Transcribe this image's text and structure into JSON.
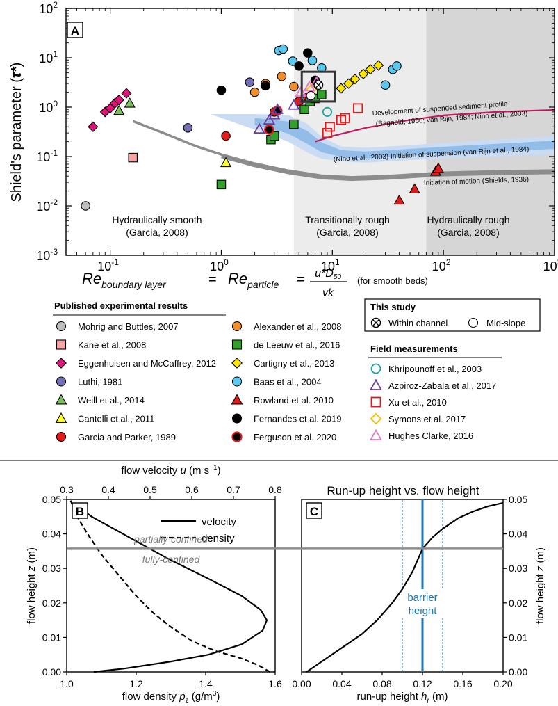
{
  "colors": {
    "band_light": "#ececec",
    "band_dark": "#d6d6d6",
    "suspension_light": "#c9dcf3",
    "suspension_dark": "#8ab7e6",
    "motion_curve": "#8c8c8c",
    "profile_curve": "#c2185b",
    "barrier": "#1f77b4",
    "confinement_line": "#8c8c8c"
  },
  "chart_data": [
    {
      "type": "scatter",
      "panel": "A",
      "panel_label": "A",
      "xscale": "log",
      "yscale": "log",
      "xlim": [
        0.04,
        1000
      ],
      "ylim": [
        0.001,
        100
      ],
      "x_ticks": [
        {
          "v": 0.1,
          "label": "10",
          "exp": "-1"
        },
        {
          "v": 1,
          "label": "10",
          "exp": "0"
        },
        {
          "v": 10,
          "label": "10",
          "exp": "1"
        },
        {
          "v": 100,
          "label": "10",
          "exp": "2"
        },
        {
          "v": 1000,
          "label": "10",
          "exp": "3"
        }
      ],
      "y_ticks": [
        {
          "v": 0.001,
          "label": "10",
          "exp": "-3"
        },
        {
          "v": 0.01,
          "label": "10",
          "exp": "-2"
        },
        {
          "v": 0.1,
          "label": "10",
          "exp": "-1"
        },
        {
          "v": 1,
          "label": "10",
          "exp": "0"
        },
        {
          "v": 10,
          "label": "10",
          "exp": "1"
        },
        {
          "v": 100,
          "label": "10",
          "exp": "2"
        }
      ],
      "ylabel": "Shield's parameter (",
      "ylabel_symbol": "τ*",
      "ylabel_close": ")",
      "xlabel": {
        "re_main": "Re",
        "boundary_sub": "boundary layer",
        "equals": "=",
        "particle_sub": "particle",
        "numerator": "u*D",
        "numerator_sub": "50",
        "denominator": "vk",
        "note": "(for smooth beds)"
      },
      "regions": [
        {
          "name": "Hydraulically smooth",
          "cite": "(Garcia, 2008)",
          "x_from": 0.04,
          "x_to": 4.5,
          "shade": "none"
        },
        {
          "name": "Transitionally rough",
          "cite": "(Garcia, 2008)",
          "x_from": 4.5,
          "x_to": 70,
          "shade": "light"
        },
        {
          "name": "Hydraulically rough",
          "cite": "(Garcia, 2008)",
          "x_from": 70,
          "x_to": 1000,
          "shade": "dark"
        }
      ],
      "curves": [
        {
          "name": "Initiation of motion (Shields, 1936)",
          "x": [
            0.16,
            0.3,
            0.6,
            1,
            2,
            4,
            8,
            15,
            30,
            60,
            100,
            300,
            1000
          ],
          "y": [
            0.52,
            0.3,
            0.16,
            0.11,
            0.072,
            0.052,
            0.041,
            0.038,
            0.04,
            0.044,
            0.047,
            0.05,
            0.052
          ]
        },
        {
          "name": "Development of suspended sediment profile",
          "cite": "(Bagnold, 1966; van Rijn, 1984; Nino et al., 2003)",
          "x": [
            7,
            10,
            20,
            50,
            100,
            300,
            1000
          ],
          "y": [
            0.2,
            0.26,
            0.38,
            0.55,
            0.68,
            0.8,
            0.88
          ]
        },
        {
          "name": "(Nino et al., 2003) Initiation of suspension (van Rijn et al., 1984)",
          "x": [
            0.8,
            2,
            4,
            6,
            8,
            12,
            20,
            50,
            100,
            300,
            1000
          ],
          "y_upper": [
            0.72,
            0.72,
            0.7,
            0.45,
            0.25,
            0.16,
            0.15,
            0.17,
            0.19,
            0.22,
            0.26
          ],
          "y_lower": [
            0.72,
            0.35,
            0.2,
            0.12,
            0.09,
            0.08,
            0.075,
            0.085,
            0.09,
            0.1,
            0.11
          ]
        }
      ],
      "series": [
        {
          "name": "Mohrig and Buttles, 2007",
          "marker": "circle",
          "fill": "#bdbdbd",
          "stroke": "#000000",
          "points": [
            [
              0.06,
              0.01
            ]
          ]
        },
        {
          "name": "Kane et al., 2008",
          "marker": "square",
          "fill": "#f4a6a6",
          "stroke": "#000000",
          "points": [
            [
              0.16,
              0.095
            ]
          ]
        },
        {
          "name": "Eggenhuisen and McCaffrey, 2012",
          "marker": "diamond",
          "fill": "#e0157a",
          "stroke": "#000000",
          "points": [
            [
              0.07,
              0.4
            ],
            [
              0.09,
              0.8
            ],
            [
              0.1,
              0.95
            ],
            [
              0.11,
              1.2
            ],
            [
              0.12,
              1.4
            ],
            [
              0.14,
              1.9
            ]
          ]
        },
        {
          "name": "Luthi, 1981",
          "marker": "circle",
          "fill": "#7570b3",
          "stroke": "#000000",
          "points": [
            [
              0.5,
              0.38
            ],
            [
              1.8,
              3.2
            ]
          ]
        },
        {
          "name": "Weill et al., 2014",
          "marker": "triangle",
          "fill": "#7fbf5f",
          "stroke": "#000000",
          "points": [
            [
              0.12,
              0.85
            ],
            [
              0.15,
              1.2
            ]
          ]
        },
        {
          "name": "Cantelli et al., 2011",
          "marker": "triangle",
          "fill": "#ffff33",
          "stroke": "#000000",
          "points": [
            [
              1.1,
              0.075
            ]
          ]
        },
        {
          "name": "Garcia and Parker, 1989",
          "marker": "circle",
          "fill": "#e31a1c",
          "stroke": "#000000",
          "points": [
            [
              1.1,
              0.26
            ],
            [
              3,
              0.8
            ],
            [
              5,
              1.3
            ],
            [
              6,
              1.6
            ]
          ]
        },
        {
          "name": "Alexander et al., 2008",
          "marker": "circle",
          "fill": "#f28e2b",
          "stroke": "#000000",
          "points": [
            [
              2,
              2.0
            ],
            [
              2.5,
              3.0
            ],
            [
              3.5,
              4.2
            ],
            [
              4.5,
              2.6
            ]
          ]
        },
        {
          "name": "de Leeuw et al., 2016",
          "marker": "square",
          "fill": "#33a02c",
          "stroke": "#000000",
          "points": [
            [
              1,
              0.027
            ],
            [
              2.8,
              0.22
            ],
            [
              3,
              0.26
            ],
            [
              4.5,
              0.45
            ],
            [
              5.6,
              0.9
            ],
            [
              6.3,
              1.3
            ],
            [
              7,
              1.5
            ],
            [
              8,
              1.8
            ]
          ]
        },
        {
          "name": "Cartigny et al., 2013",
          "marker": "diamond",
          "fill": "#ffe600",
          "stroke": "#000000",
          "points": [
            [
              12,
              2.4
            ],
            [
              14,
              3.0
            ],
            [
              16,
              3.7
            ],
            [
              19,
              4.7
            ],
            [
              22,
              5.8
            ],
            [
              26,
              7.0
            ]
          ]
        },
        {
          "name": "Baas et al., 2004",
          "marker": "circle",
          "fill": "#5bc8f0",
          "stroke": "#000000",
          "points": [
            [
              3.3,
              14
            ],
            [
              3.6,
              15
            ],
            [
              4.4,
              8.5
            ],
            [
              6.6,
              8.8
            ],
            [
              8,
              6.2
            ],
            [
              30,
              2.8
            ],
            [
              35,
              5.8
            ],
            [
              38,
              6.8
            ]
          ]
        },
        {
          "name": "Rowland et al. 2010",
          "marker": "triangle",
          "fill": "#e31a1c",
          "stroke": "#000000",
          "points": [
            [
              40,
              0.013
            ],
            [
              55,
              0.022
            ],
            [
              85,
              0.05
            ],
            [
              90,
              0.058
            ]
          ]
        },
        {
          "name": "Fernandes et al. 2019",
          "marker": "circle",
          "fill": "#000000",
          "stroke": "#000000",
          "points": [
            [
              1,
              2.2
            ],
            [
              2.5,
              2.7
            ],
            [
              5,
              6.8
            ],
            [
              6,
              12.5
            ],
            [
              7,
              3.5
            ]
          ]
        },
        {
          "name": "Ferguson et al. 2020",
          "marker": "circle",
          "fill": "#000000",
          "stroke": "#e31a1c",
          "points": [
            [
              2.7,
              0.35
            ],
            [
              3.2,
              0.85
            ]
          ]
        },
        {
          "name": "Khripounoff et al., 2003",
          "marker": "circle",
          "fill": "none",
          "stroke": "#1aa39b",
          "points": [
            [
              9,
              0.8
            ]
          ]
        },
        {
          "name": "Azpiroz-Zabala et al., 2017",
          "marker": "triangle",
          "fill": "none",
          "stroke": "#6a3d9a",
          "points": [
            [
              2.2,
              0.36
            ],
            [
              2.7,
              0.55
            ],
            [
              3,
              0.7
            ],
            [
              3.2,
              0.9
            ],
            [
              4.5,
              1.1
            ],
            [
              5.6,
              1.5
            ]
          ]
        },
        {
          "name": "Xu et al., 2010",
          "marker": "square",
          "fill": "none",
          "stroke": "#e31a1c",
          "points": [
            [
              9,
              0.3
            ],
            [
              9.5,
              0.4
            ],
            [
              12,
              0.55
            ],
            [
              13,
              0.6
            ],
            [
              17,
              0.95
            ]
          ]
        },
        {
          "name": "Symons et al. 2017",
          "marker": "diamond",
          "fill": "none",
          "stroke": "#f2c200",
          "points": [
            [
              6.5,
              2.3
            ]
          ]
        },
        {
          "name": "Hughes Clarke, 2016",
          "marker": "triangle",
          "fill": "none",
          "stroke": "#e377c2",
          "points": [
            [
              5.2,
              2.0
            ],
            [
              6.2,
              2.6
            ],
            [
              7.2,
              3.2
            ]
          ]
        },
        {
          "name": "Within channel",
          "marker": "otimes",
          "fill": "#ffffff",
          "stroke": "#000000",
          "points": [
            [
              7.5,
              2.8
            ]
          ]
        },
        {
          "name": "Mid-slope",
          "marker": "circle",
          "fill": "#ffffff",
          "stroke": "#000000",
          "points": [
            [
              6.4,
              1.7
            ]
          ]
        }
      ],
      "highlight_box": {
        "x": [
          5.3,
          10.5
        ],
        "y": [
          1.3,
          5.2
        ]
      }
    },
    {
      "type": "line",
      "panel": "B",
      "panel_label": "B",
      "ylabel": "flow height",
      "ylabel_var": "z",
      "ylabel_unit": "(m)",
      "ylim": [
        0,
        0.05
      ],
      "y_ticks": [
        0,
        0.01,
        0.02,
        0.03,
        0.04,
        0.05
      ],
      "y_tick_labels": [
        "0.00",
        "0.01",
        "0.02",
        "0.03",
        "0.04",
        "0.05"
      ],
      "xlabel_bottom": "flow density",
      "xlabel_bottom_var": "p",
      "xlabel_bottom_sub": "z",
      "xlabel_bottom_unit": "(g/m",
      "xlabel_bottom_unit_sup": "3",
      "xlabel_bottom_unit_close": ")",
      "xlim_bottom": [
        1.0,
        1.6
      ],
      "x_ticks_bottom": [
        1.0,
        1.2,
        1.4,
        1.6
      ],
      "x_tick_labels_bottom": [
        "1.0",
        "1.2",
        "1.4",
        "1.6"
      ],
      "xlabel_top": "flow velocity",
      "xlabel_top_var": "u",
      "xlabel_top_unit": "(m s",
      "xlabel_top_unit_sup": "−1",
      "xlabel_top_unit_close": ")",
      "xlim_top": [
        0.3,
        0.8
      ],
      "x_ticks_top": [
        0.3,
        0.4,
        0.5,
        0.6,
        0.7,
        0.8
      ],
      "x_tick_labels_top": [
        "0.3",
        "0.4",
        "0.5",
        "0.6",
        "0.7",
        "0.8"
      ],
      "series": [
        {
          "name": "velocity",
          "axis": "top",
          "style": "solid",
          "values_u": [
            0.365,
            0.44,
            0.55,
            0.64,
            0.72,
            0.77,
            0.78,
            0.765,
            0.72,
            0.64,
            0.54,
            0.45,
            0.36,
            0.315
          ],
          "values_z": [
            0.0,
            0.001,
            0.003,
            0.005,
            0.008,
            0.012,
            0.015,
            0.018,
            0.022,
            0.027,
            0.033,
            0.039,
            0.045,
            0.049
          ]
        },
        {
          "name": "density",
          "axis": "bottom",
          "style": "dashed",
          "values_rho": [
            1.585,
            1.55,
            1.5,
            1.43,
            1.36,
            1.3,
            1.25,
            1.2,
            1.15,
            1.1,
            1.06,
            1.03,
            1.01
          ],
          "values_z": [
            0.0,
            0.002,
            0.004,
            0.006,
            0.009,
            0.013,
            0.017,
            0.022,
            0.028,
            0.034,
            0.04,
            0.045,
            0.05
          ]
        }
      ],
      "confinement": {
        "z": 0.0357,
        "above": "partially-confined",
        "below": "fully-confined"
      }
    },
    {
      "type": "line",
      "panel": "C",
      "panel_label": "C",
      "title": "Run-up height vs. flow height",
      "ylabel": "flow height",
      "ylabel_var": "z",
      "ylabel_unit": "(m)",
      "ylim": [
        0,
        0.05
      ],
      "y_ticks": [
        0,
        0.01,
        0.02,
        0.03,
        0.04,
        0.05
      ],
      "y_tick_labels": [
        "0.00",
        "0.01",
        "0.02",
        "0.03",
        "0.04",
        "0.05"
      ],
      "xlabel": "run-up height",
      "xlabel_var": "h",
      "xlabel_sub": "r",
      "xlabel_unit": "(m)",
      "xlim": [
        0,
        0.2
      ],
      "x_ticks": [
        0,
        0.04,
        0.08,
        0.12,
        0.16,
        0.2
      ],
      "x_tick_labels": [
        "0.00",
        "0.04",
        "0.08",
        "0.12",
        "0.16",
        "0.20"
      ],
      "series": [
        {
          "name": "run-up",
          "style": "solid",
          "x": [
            0.005,
            0.02,
            0.04,
            0.06,
            0.075,
            0.09,
            0.1,
            0.11,
            0.12,
            0.13,
            0.14,
            0.155,
            0.17,
            0.185,
            0.2
          ],
          "y": [
            0.0,
            0.003,
            0.007,
            0.011,
            0.015,
            0.02,
            0.024,
            0.029,
            0.0357,
            0.039,
            0.0415,
            0.0445,
            0.0465,
            0.048,
            0.049
          ]
        }
      ],
      "barrier": {
        "x": 0.12,
        "range": [
          0.1,
          0.14
        ],
        "label_1": "barrier",
        "label_2": "height"
      },
      "confinement_z": 0.0357
    }
  ],
  "legend": {
    "published_title": "Published experimental results",
    "this_study_title": "This study",
    "field_title": "Field measurements",
    "col1": [
      "Mohrig and Buttles, 2007",
      "Kane et al., 2008",
      "Eggenhuisen and McCaffrey, 2012",
      "Luthi, 1981",
      "Weill et al., 2014",
      "Cantelli et al., 2011",
      "Garcia and Parker, 1989"
    ],
    "col2": [
      "Alexander et al., 2008",
      "de Leeuw et al., 2016",
      "Cartigny et al., 2013",
      "Baas et al., 2004",
      "Rowland et al. 2010",
      "Fernandes et al. 2019",
      "Ferguson et al. 2020"
    ],
    "this_study": [
      "Within channel",
      "Mid-slope"
    ],
    "field": [
      "Khripounoff et al., 2003",
      "Azpiroz-Zabala et al., 2017",
      "Xu et al., 2010",
      "Symons et al. 2017",
      "Hughes Clarke, 2016"
    ],
    "velocity_label": "velocity",
    "density_label": "density"
  }
}
